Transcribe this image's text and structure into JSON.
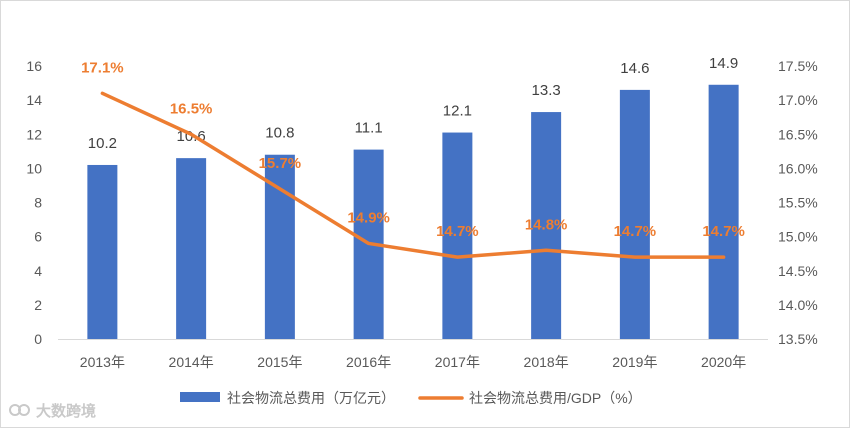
{
  "chart_data": {
    "type": "bar-line-combo",
    "categories": [
      "2013年",
      "2014年",
      "2015年",
      "2016年",
      "2017年",
      "2018年",
      "2019年",
      "2020年"
    ],
    "series": [
      {
        "name": "社会物流总费用（万亿元）",
        "type": "bar",
        "axis": "left",
        "color": "#4472C4",
        "values": [
          10.2,
          10.6,
          10.8,
          11.1,
          12.1,
          13.3,
          14.6,
          14.9
        ],
        "labels": [
          "10.2",
          "10.6",
          "10.8",
          "11.1",
          "12.1",
          "13.3",
          "14.6",
          "14.9"
        ]
      },
      {
        "name": "社会物流总费用/GDP（%）",
        "type": "line",
        "axis": "right",
        "color": "#ED7D31",
        "values": [
          17.1,
          16.5,
          15.7,
          14.9,
          14.7,
          14.8,
          14.7,
          14.7
        ],
        "labels": [
          "17.1%",
          "16.5%",
          "15.7%",
          "14.9%",
          "14.7%",
          "14.8%",
          "14.7%",
          "14.7%"
        ]
      }
    ],
    "left_axis": {
      "min": 0,
      "max": 16,
      "ticks": [
        0,
        2,
        4,
        6,
        8,
        10,
        12,
        14,
        16
      ],
      "tick_labels": [
        "0",
        "2",
        "4",
        "6",
        "8",
        "10",
        "12",
        "14",
        "16"
      ]
    },
    "right_axis": {
      "min": 13.5,
      "max": 17.5,
      "ticks": [
        13.5,
        14.0,
        14.5,
        15.0,
        15.5,
        16.0,
        16.5,
        17.0,
        17.5
      ],
      "tick_labels": [
        "13.5%",
        "14.0%",
        "14.5%",
        "15.0%",
        "15.5%",
        "16.0%",
        "16.5%",
        "17.0%",
        "17.5%"
      ]
    },
    "grid": false,
    "legend_position": "bottom"
  },
  "watermark": {
    "text": "大数跨境",
    "color": "#c9c9c9"
  }
}
